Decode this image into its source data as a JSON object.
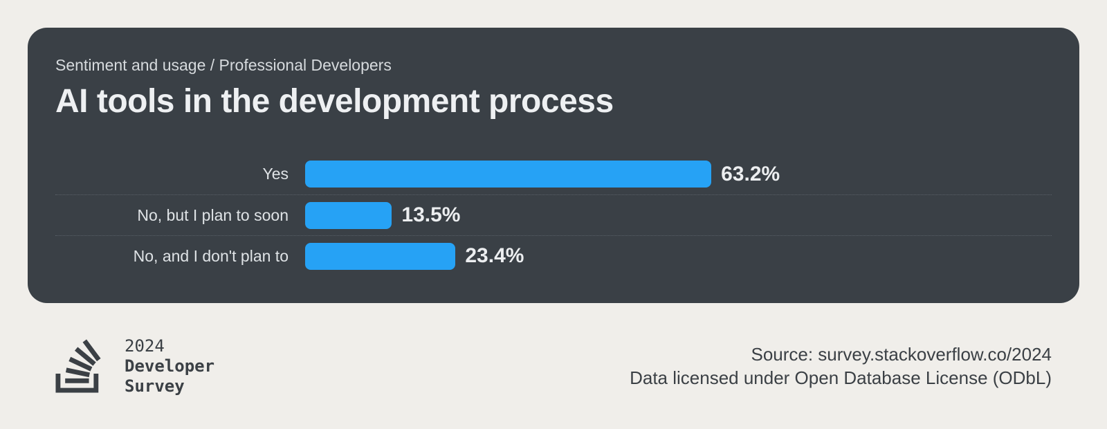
{
  "page": {
    "background": "#f0eeea"
  },
  "card": {
    "background": "#3a4046",
    "breadcrumb": "Sentiment and usage / Professional Developers",
    "title": "AI tools in the development process"
  },
  "chart_data": {
    "type": "bar",
    "orientation": "horizontal",
    "title": "AI tools in the development process",
    "subtitle": "Sentiment and usage / Professional Developers",
    "categories": [
      "Yes",
      "No, but I plan to soon",
      "No, and I don't plan to"
    ],
    "values": [
      63.2,
      13.5,
      23.4
    ],
    "value_labels": [
      "63.2%",
      "13.5%",
      "23.4%"
    ],
    "unit": "%",
    "xlim": [
      0,
      100
    ],
    "grid": false,
    "legend": false,
    "bar_color": "#26a2f5",
    "label_color": "#dfe3e6",
    "value_color": "#eceef0"
  },
  "footer": {
    "logo": {
      "icon": "stackoverflow-logo",
      "year": "2024",
      "name_line1": "Developer",
      "name_line2": "Survey",
      "color": "#3b4045"
    },
    "source_line1": "Source: survey.stackoverflow.co/2024",
    "source_line2": "Data licensed under Open Database License (ODbL)"
  }
}
